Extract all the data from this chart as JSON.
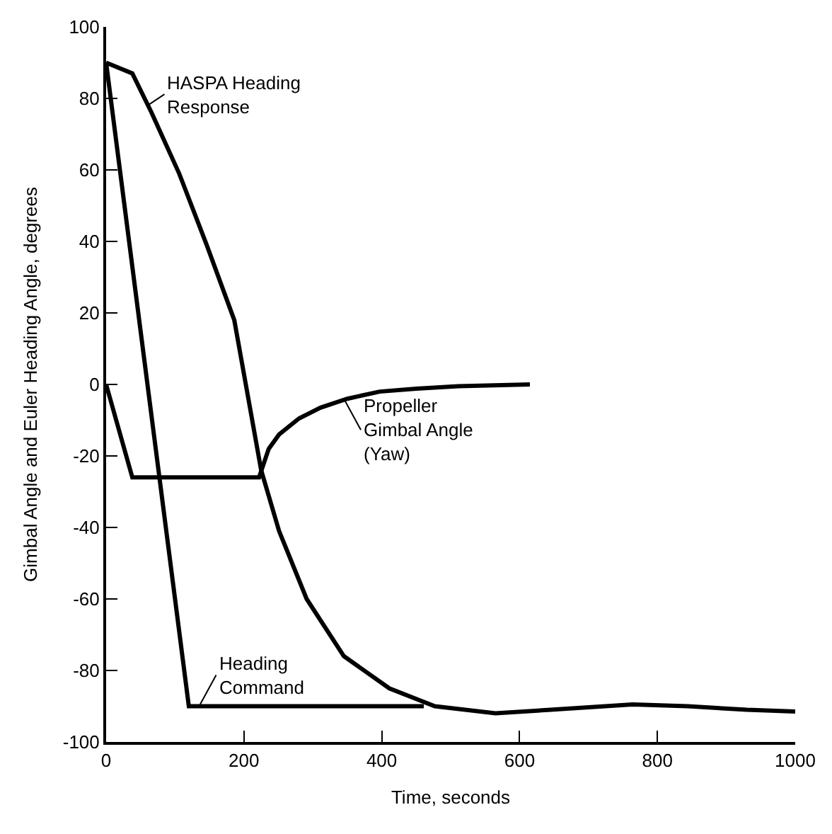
{
  "chart_data": {
    "type": "line",
    "xlabel": "Time, seconds",
    "ylabel": "Gimbal Angle and Euler Heading Angle, degrees",
    "xlim": [
      0,
      1000
    ],
    "xticks": [
      0,
      200,
      400,
      600,
      800,
      1000
    ],
    "ylim": [
      -100,
      100
    ],
    "yticks": [
      -100,
      -80,
      -60,
      -40,
      -20,
      0,
      20,
      40,
      60,
      80,
      100
    ],
    "marker": "none",
    "line_style": "solid",
    "series": [
      {
        "color": "#000000",
        "x": [
          0,
          38,
          66,
          106,
          146,
          186,
          225,
          251,
          291,
          345,
          411,
          477,
          565,
          645,
          764,
          844,
          930,
          1000
        ],
        "values": [
          90,
          87,
          76,
          59,
          39,
          18,
          -24,
          -41,
          -60,
          -76,
          -85,
          -90,
          -92,
          -91,
          -89.5,
          -90,
          -91,
          -91.5
        ]
      },
      {
        "color": "#000000",
        "x": [
          0,
          38,
          222,
          236,
          251,
          280,
          311,
          350,
          397,
          450,
          511,
          615
        ],
        "values": [
          0,
          -26,
          -26,
          -18,
          -14,
          -9.5,
          -6.5,
          -4,
          -2,
          -1.2,
          -0.5,
          0
        ]
      },
      {
        "color": "#000000",
        "x": [
          0,
          120,
          461
        ],
        "values": [
          90,
          -90,
          -90
        ]
      }
    ],
    "annotations": [
      {
        "text": "HASPA Heading\nResponse",
        "x": 60,
        "y": 78
      },
      {
        "text": "Propeller\nGimbal Angle\n(Yaw)",
        "x": 345,
        "y": -4
      },
      {
        "text": "Heading\nCommand",
        "x": 135,
        "y": -90
      }
    ]
  }
}
